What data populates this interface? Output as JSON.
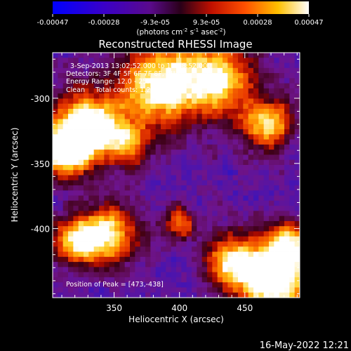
{
  "colorbar": {
    "ticks": [
      "-0.00047",
      "-0.00028",
      "-9.3e-05",
      "9.3e-05",
      "0.00028",
      "0.00047"
    ],
    "units_prefix": "(photons cm",
    "units_exp1": "-2",
    "units_mid": " s",
    "units_exp2": "-1",
    "units_mid2": " asec",
    "units_exp3": "-2",
    "units_suffix": ")"
  },
  "chart_data": {
    "type": "heatmap",
    "title": "Reconstructed RHESSI Image",
    "xlabel": "Heliocentric X (arcsec)",
    "ylabel": "Heliocentric Y (arcsec)",
    "xlim": [
      303,
      492
    ],
    "ylim": [
      -453,
      -265
    ],
    "xticks": [
      350,
      400,
      450
    ],
    "yticks": [
      -300,
      -350,
      -400
    ],
    "colormap": "RHESSI std gamma (blue-purple-red-orange-yellow-white)",
    "color_range": [
      -0.00047,
      0.00047
    ],
    "info_lines": [
      "3-Sep-2013 13:02:52.000 to 13:08:52.000",
      "Detectors: 3F 4F 5F 6F 7F 8F, Att 0",
      "Energy Range: 12.0 - 25.0 keV",
      "Clean     Total counts: 1.25E+04"
    ],
    "peak_label": "Position of Peak = [473,-438]",
    "peak_position": [
      473,
      -438
    ],
    "hot_regions": [
      {
        "x": 330,
        "y": -320,
        "sigma": 18,
        "level": 0.88
      },
      {
        "x": 312,
        "y": -340,
        "sigma": 14,
        "level": 0.85
      },
      {
        "x": 385,
        "y": -290,
        "sigma": 22,
        "level": 0.8
      },
      {
        "x": 430,
        "y": -285,
        "sigma": 20,
        "level": 0.72
      },
      {
        "x": 468,
        "y": -320,
        "sigma": 14,
        "level": 0.7
      },
      {
        "x": 360,
        "y": -335,
        "sigma": 12,
        "level": 0.55
      },
      {
        "x": 345,
        "y": -405,
        "sigma": 16,
        "level": 0.78
      },
      {
        "x": 320,
        "y": -410,
        "sigma": 12,
        "level": 0.6
      },
      {
        "x": 400,
        "y": -395,
        "sigma": 9,
        "level": 0.5
      },
      {
        "x": 473,
        "y": -438,
        "sigma": 20,
        "level": 1.0
      },
      {
        "x": 440,
        "y": -425,
        "sigma": 14,
        "level": 0.65
      },
      {
        "x": 485,
        "y": -410,
        "sigma": 10,
        "level": 0.55
      }
    ]
  },
  "timestamp": "16-May-2022 12:21"
}
